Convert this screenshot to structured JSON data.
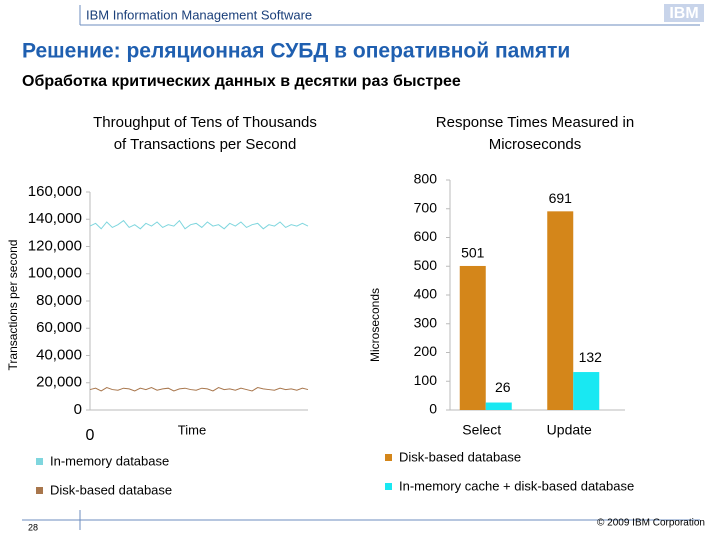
{
  "header": {
    "brand": "IBM Information Management Software",
    "logo": "IBM",
    "title": "Решение: реляционная СУБД в оперативной памяти",
    "subtitle": "Обработка критических данных в десятки раз быстрее"
  },
  "footer": {
    "page": "28",
    "copyright": "© 2009 IBM Corporation"
  },
  "chart_data": [
    {
      "type": "line",
      "title": [
        "Throughput of Tens of Thousands",
        "of Transactions per Second"
      ],
      "ylabel": "Transactions per second",
      "xlabel": "Time",
      "x": [
        0,
        1,
        2,
        3,
        4,
        5,
        6,
        7,
        8,
        9,
        10,
        11,
        12,
        13,
        14,
        15,
        16,
        17,
        18,
        19,
        20,
        21,
        22,
        23,
        24,
        25,
        26,
        27,
        28,
        29,
        30,
        31,
        32,
        33,
        34,
        35,
        36,
        37,
        38,
        39
      ],
      "xlim": [
        0,
        39
      ],
      "xticks": [
        0
      ],
      "ylim": [
        0,
        160000
      ],
      "yticks": [
        0,
        {
          "value": 20000,
          "label": "20,000"
        },
        {
          "value": 40000,
          "label": "40,000"
        },
        {
          "value": 60000,
          "label": "60,000"
        },
        {
          "value": 80000,
          "label": "80,000"
        },
        {
          "value": 100000,
          "label": "100,000"
        },
        {
          "value": 120000,
          "label": "120,000"
        },
        {
          "value": 140000,
          "label": "140,000"
        },
        {
          "value": 160000,
          "label": "160,000"
        }
      ],
      "series": [
        {
          "name": "In-memory database",
          "color": "#7fd6de",
          "values": [
            135000,
            137000,
            133000,
            138000,
            134000,
            136000,
            139000,
            134000,
            136000,
            133000,
            137000,
            135000,
            138000,
            134000,
            136000,
            135000,
            139000,
            133000,
            136000,
            137000,
            134000,
            138000,
            135000,
            136000,
            133000,
            137000,
            135000,
            138000,
            134000,
            136000,
            137000,
            133000,
            136000,
            135000,
            138000,
            134000,
            136000,
            135000,
            137000,
            135000
          ]
        },
        {
          "name": "Disk-based database",
          "color": "#a8764c",
          "values": [
            15000,
            16000,
            14000,
            16500,
            15000,
            14500,
            16000,
            15500,
            14000,
            16000,
            15000,
            16500,
            14500,
            15500,
            16000,
            14000,
            15500,
            16000,
            15000,
            14500,
            16000,
            15500,
            14000,
            16500,
            15000,
            15500,
            14500,
            16000,
            15000,
            14000,
            16500,
            15500,
            15000,
            14500,
            16000,
            15000,
            15500,
            14500,
            16000,
            15000
          ]
        }
      ]
    },
    {
      "type": "bar",
      "title": [
        "Response Times Measured in",
        "Microseconds"
      ],
      "ylabel": "Microseconds",
      "categories": [
        "Select",
        "Update"
      ],
      "ylim": [
        0,
        800
      ],
      "yticks": [
        0,
        100,
        200,
        300,
        400,
        500,
        600,
        700,
        800
      ],
      "series": [
        {
          "name": "Disk-based database",
          "color": "#d4861a",
          "values": [
            501,
            691
          ]
        },
        {
          "name": "In-memory cache + disk-based database",
          "color": "#19e8f2",
          "values": [
            26,
            132
          ]
        }
      ]
    }
  ]
}
